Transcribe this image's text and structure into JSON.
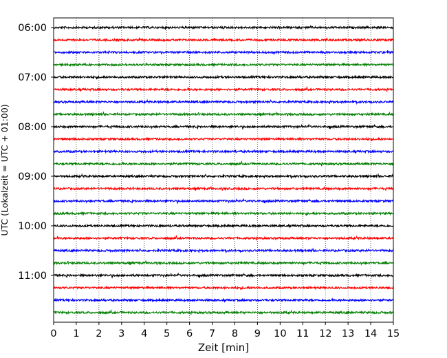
{
  "chart_data": {
    "type": "line",
    "title": "",
    "xlabel": "Zeit  [min]",
    "ylabel": "UTC (Lokalzeit = UTC + 01:00)",
    "xlim": [
      0,
      15
    ],
    "x_ticks": [
      "0",
      "1",
      "2",
      "3",
      "4",
      "5",
      "6",
      "7",
      "8",
      "9",
      "10",
      "11",
      "12",
      "13",
      "14",
      "15"
    ],
    "y_ticks": [
      "06:00",
      "07:00",
      "08:00",
      "09:00",
      "10:00",
      "11:00"
    ],
    "grid": "vertical dotted",
    "trace_interval_minutes": 15,
    "trace_colors": [
      "#000000",
      "#ff0000",
      "#0000ff",
      "#008000"
    ],
    "traces": [
      "06:00",
      "06:15",
      "06:30",
      "06:45",
      "07:00",
      "07:15",
      "07:30",
      "07:45",
      "08:00",
      "08:15",
      "08:30",
      "08:45",
      "09:00",
      "09:15",
      "09:30",
      "09:45",
      "10:00",
      "10:15",
      "10:30",
      "10:45",
      "11:00",
      "11:15",
      "11:30",
      "11:45"
    ]
  }
}
